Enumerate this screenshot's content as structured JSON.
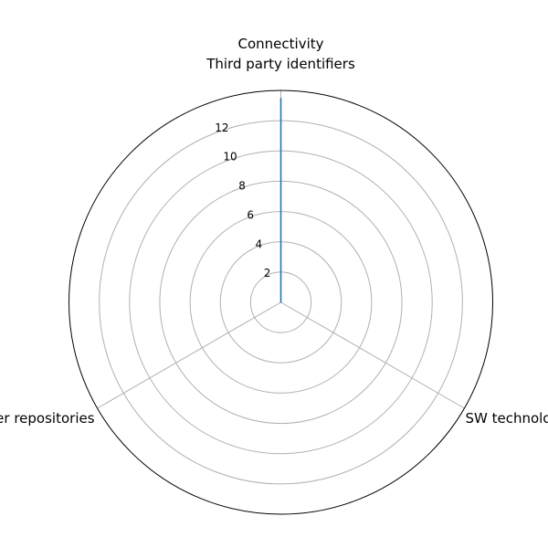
{
  "chart_data": {
    "type": "radar",
    "title": "",
    "categories": [
      "Connectivity\nThird party identifiers",
      "SW technologies",
      "Links to other repositories"
    ],
    "series": [
      {
        "values": [
          13.5,
          0,
          0
        ],
        "color": "#1f77b4"
      }
    ],
    "rlim": [
      0,
      14
    ],
    "rticks": [
      2,
      4,
      6,
      8,
      10,
      12
    ],
    "rtick_labels": [
      "2",
      "4",
      "6",
      "8",
      "10",
      "12"
    ],
    "grid": true,
    "legend": "none"
  }
}
